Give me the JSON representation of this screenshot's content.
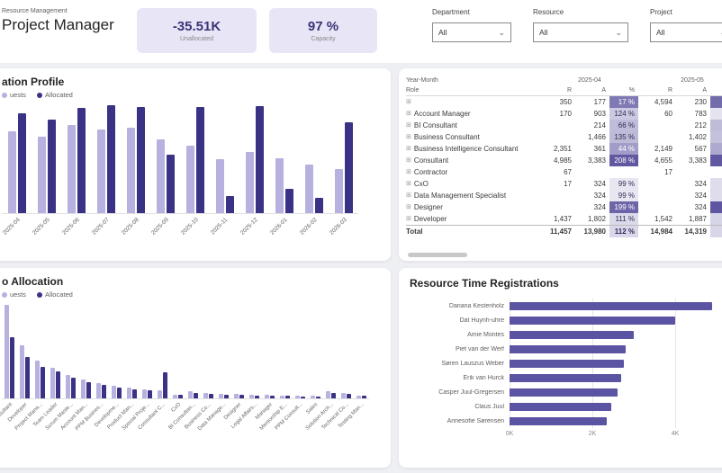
{
  "colors": {
    "requests": "#b7b1e0",
    "allocated": "#3a3285",
    "hbar": "#5b54a2",
    "kpi_bg": "#e8e6f6",
    "kpi_text": "#3b3577"
  },
  "header": {
    "subtitle": "Resource Management",
    "title": "Project Manager",
    "kpis": [
      {
        "value": "-35.51K",
        "label": "Unallocated"
      },
      {
        "value": "97 %",
        "label": "Capacity"
      }
    ],
    "slicers": [
      {
        "label": "Department",
        "value": "All"
      },
      {
        "label": "Resource",
        "value": "All"
      },
      {
        "label": "Project",
        "value": "All"
      }
    ]
  },
  "profile_card": {
    "title": "ation Profile",
    "legend": [
      {
        "name": "uests",
        "color": "#b7b1e0"
      },
      {
        "name": "Allocated",
        "color": "#3a3285"
      }
    ]
  },
  "allocation_card": {
    "title": "o Allocation",
    "legend": [
      {
        "name": "uests",
        "color": "#b7b1e0"
      },
      {
        "name": "Allocated",
        "color": "#3a3285"
      }
    ]
  },
  "time_card": {
    "title": "Resource Time Registrations"
  },
  "matrix": {
    "corner_top": "Year-Month",
    "corner_bottom": "Role",
    "groups": [
      "2025-04",
      "2025-05"
    ],
    "measures": [
      "R",
      "A",
      "%"
    ],
    "rows": [
      {
        "name": "",
        "r1": "350",
        "a1": "177",
        "p1": 17,
        "r2": "4,594",
        "a2": "230",
        "p2": 5
      },
      {
        "name": "Account Manager",
        "r1": "170",
        "a1": "903",
        "p1": 124,
        "r2": "60",
        "a2": "783",
        "p2": 104
      },
      {
        "name": "BI Consultant",
        "r1": "",
        "a1": "214",
        "p1": 66,
        "r2": "",
        "a2": "212",
        "p2": 66
      },
      {
        "name": "Business Consultant",
        "r1": "",
        "a1": "1,466",
        "p1": 135,
        "r2": "",
        "a2": "1,402",
        "p2": 129
      },
      {
        "name": "Business Intelligence Consultant",
        "r1": "2,351",
        "a1": "361",
        "p1": 44,
        "r2": "2,149",
        "a2": "567",
        "p2": 52
      },
      {
        "name": "Consultant",
        "r1": "4,985",
        "a1": "3,383",
        "p1": 208,
        "r2": "4,655",
        "a2": "3,383",
        "p2": 208
      },
      {
        "name": "Contractor",
        "r1": "67",
        "a1": "",
        "p1": null,
        "r2": "17",
        "a2": "",
        "p2": null
      },
      {
        "name": "CxO",
        "r1": "17",
        "a1": "324",
        "p1": 99,
        "r2": "",
        "a2": "324",
        "p2": 108
      },
      {
        "name": "Data Management Specialist",
        "r1": "",
        "a1": "324",
        "p1": 99,
        "r2": "",
        "a2": "324",
        "p2": 108
      },
      {
        "name": "Designer",
        "r1": "",
        "a1": "324",
        "p1": 199,
        "r2": "",
        "a2": "324",
        "p2": 216
      },
      {
        "name": "Developer",
        "r1": "1,437",
        "a1": "1,802",
        "p1": 111,
        "r2": "1,542",
        "a2": "1,887",
        "p2": 116
      }
    ],
    "total": {
      "name": "Total",
      "r1": "11,457",
      "a1": "13,980",
      "p1": 112,
      "r2": "14,984",
      "a2": "14,319",
      "p2": 114
    }
  },
  "chart_data": [
    {
      "id": "utilization-profile",
      "type": "bar",
      "title": "ation Profile",
      "categories": [
        "2025-04",
        "2025-05",
        "2025-06",
        "2025-07",
        "2025-08",
        "2025-09",
        "2025-10",
        "2025-11",
        "2025-12",
        "2026-01",
        "2026-02",
        "2026-03"
      ],
      "series": [
        {
          "name": "uests",
          "values": [
            11.6,
            10.9,
            12.5,
            11.8,
            12.1,
            10.4,
            9.5,
            7.6,
            8.7,
            7.8,
            6.9,
            6.2
          ]
        },
        {
          "name": "Allocated",
          "values": [
            14.1,
            13.3,
            14.9,
            15.3,
            15.1,
            8.3,
            15.0,
            2.4,
            15.2,
            3.4,
            2.2,
            12.9
          ]
        }
      ],
      "unit": "K hours",
      "ylim": [
        0,
        16
      ],
      "legend_position": "top"
    },
    {
      "id": "role-allocation",
      "type": "bar",
      "title": "o Allocation",
      "categories": [
        "Consultant",
        "Developer",
        "Project Mana...",
        "Team Leader",
        "Scrum Maste...",
        "Account Man...",
        "PPM Busines...",
        "Developme...",
        "Product Man...",
        "Special Proje...",
        "Consultant C...",
        "CxO",
        "BI Consultan...",
        "Business Co...",
        "Data Manage...",
        "Designer",
        "Legal Affairs...",
        "Manager",
        "Mentorship E...",
        "PPM Consult...",
        "Sales",
        "Solution Arch...",
        "Technical Co...",
        "Testing Man..."
      ],
      "series": [
        {
          "name": "uests",
          "values": [
            9.7,
            5.5,
            3.9,
            3.2,
            2.4,
            2.0,
            1.6,
            1.3,
            1.1,
            0.9,
            0.8,
            0.4,
            0.7,
            0.6,
            0.5,
            0.45,
            0.4,
            0.35,
            0.3,
            0.3,
            0.25,
            0.7,
            0.55,
            0.3
          ]
        },
        {
          "name": "Allocated",
          "values": [
            6.3,
            4.3,
            3.3,
            2.8,
            2.1,
            1.7,
            1.4,
            1.1,
            0.9,
            0.8,
            2.7,
            0.35,
            0.55,
            0.5,
            0.4,
            0.35,
            0.3,
            0.25,
            0.25,
            0.2,
            0.2,
            0.55,
            0.45,
            0.25
          ]
        }
      ],
      "unit": "K hours",
      "ylim": [
        0,
        10
      ],
      "legend_position": "top"
    },
    {
      "id": "resource-time-registrations",
      "type": "bar",
      "orientation": "horizontal",
      "title": "Resource Time Registrations",
      "categories": [
        "Dariana Kestenholz",
        "Dat Huynh-uhre",
        "Amie Montes",
        "Piet van der Werf",
        "Søren Lauszus Weber",
        "Erik van Hurck",
        "Casper Juul-Gregersen",
        "Claus Juul",
        "Annesofie Sørensen"
      ],
      "values": [
        4.9,
        4.0,
        3.0,
        2.8,
        2.75,
        2.7,
        2.6,
        2.45,
        2.35
      ],
      "ticks": [
        {
          "label": "0K",
          "value": 0
        },
        {
          "label": "2K",
          "value": 2
        },
        {
          "label": "4K",
          "value": 4
        }
      ],
      "unit": "K hours",
      "xlim": [
        0,
        5
      ]
    }
  ]
}
